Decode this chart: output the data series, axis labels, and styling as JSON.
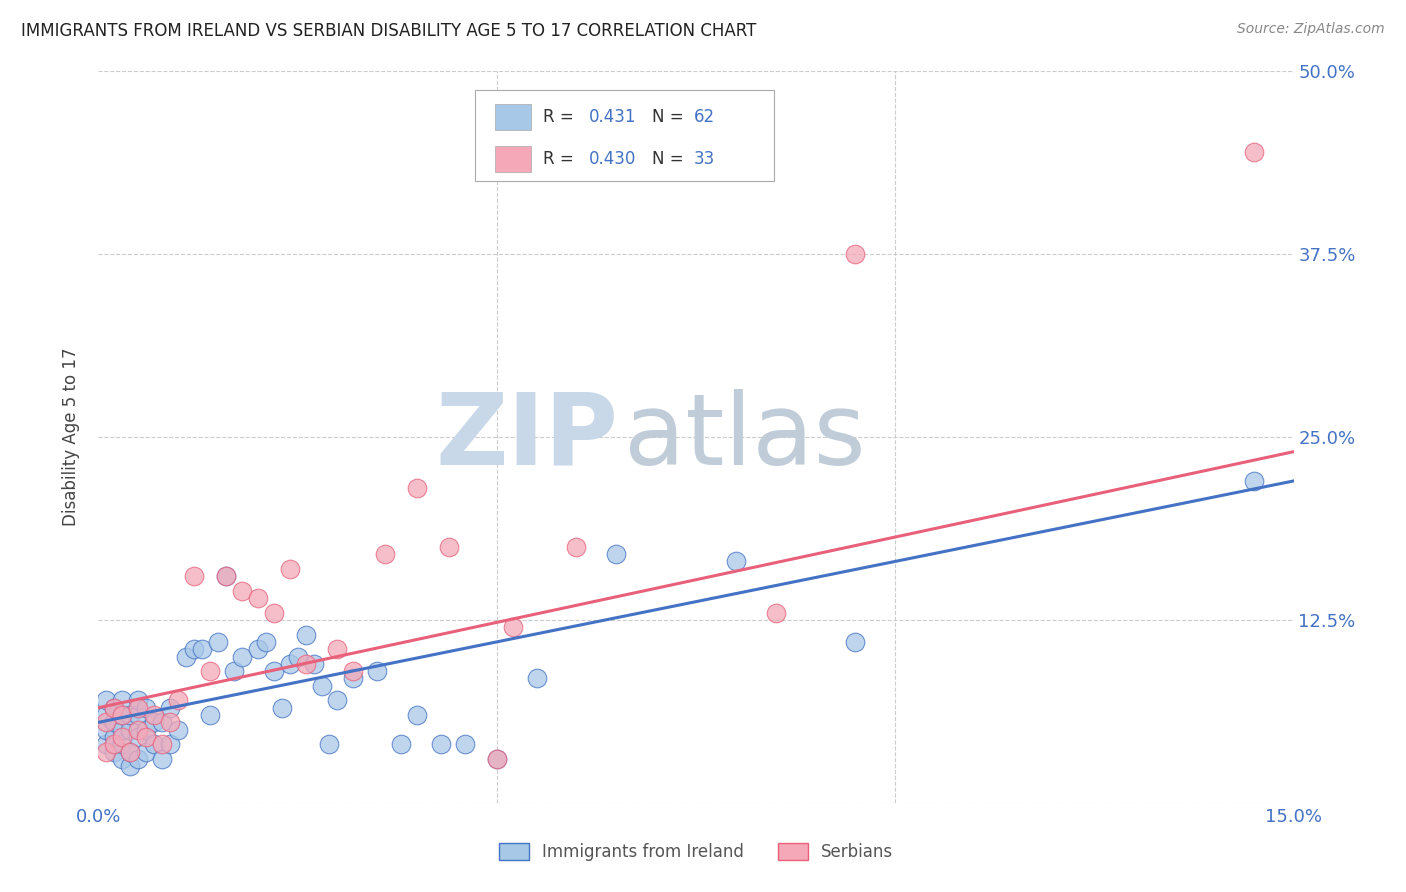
{
  "title": "IMMIGRANTS FROM IRELAND VS SERBIAN DISABILITY AGE 5 TO 17 CORRELATION CHART",
  "source": "Source: ZipAtlas.com",
  "ylabel": "Disability Age 5 to 17",
  "xlim": [
    0.0,
    0.15
  ],
  "ylim": [
    0.0,
    0.5
  ],
  "xticks": [
    0.0,
    0.05,
    0.1,
    0.15
  ],
  "xticklabels": [
    "0.0%",
    "",
    "",
    "15.0%"
  ],
  "yticks": [
    0.0,
    0.125,
    0.25,
    0.375,
    0.5
  ],
  "yticklabels": [
    "",
    "12.5%",
    "25.0%",
    "37.5%",
    "50.0%"
  ],
  "legend_r_ireland": "0.431",
  "legend_n_ireland": "62",
  "legend_r_serbian": "0.430",
  "legend_n_serbian": "33",
  "color_ireland": "#a8c8e8",
  "color_serbian": "#f4a8b8",
  "color_ireland_line": "#4472c4",
  "color_serbian_line": "#e8607a",
  "legend_label_ireland": "Immigrants from Ireland",
  "legend_label_serbian": "Serbians",
  "ireland_x": [
    0.001,
    0.001,
    0.001,
    0.001,
    0.002,
    0.002,
    0.002,
    0.002,
    0.003,
    0.003,
    0.003,
    0.003,
    0.003,
    0.004,
    0.004,
    0.004,
    0.004,
    0.005,
    0.005,
    0.005,
    0.005,
    0.006,
    0.006,
    0.006,
    0.007,
    0.007,
    0.008,
    0.008,
    0.009,
    0.009,
    0.01,
    0.011,
    0.012,
    0.013,
    0.014,
    0.015,
    0.016,
    0.017,
    0.018,
    0.02,
    0.021,
    0.022,
    0.023,
    0.024,
    0.025,
    0.026,
    0.027,
    0.028,
    0.029,
    0.03,
    0.032,
    0.035,
    0.038,
    0.04,
    0.043,
    0.046,
    0.05,
    0.055,
    0.065,
    0.08,
    0.095,
    0.145
  ],
  "ireland_y": [
    0.04,
    0.05,
    0.06,
    0.07,
    0.035,
    0.045,
    0.055,
    0.065,
    0.03,
    0.04,
    0.05,
    0.06,
    0.07,
    0.025,
    0.035,
    0.05,
    0.06,
    0.03,
    0.045,
    0.06,
    0.07,
    0.035,
    0.05,
    0.065,
    0.04,
    0.055,
    0.03,
    0.055,
    0.04,
    0.065,
    0.05,
    0.1,
    0.105,
    0.105,
    0.06,
    0.11,
    0.155,
    0.09,
    0.1,
    0.105,
    0.11,
    0.09,
    0.065,
    0.095,
    0.1,
    0.115,
    0.095,
    0.08,
    0.04,
    0.07,
    0.085,
    0.09,
    0.04,
    0.06,
    0.04,
    0.04,
    0.03,
    0.085,
    0.17,
    0.165,
    0.11,
    0.22
  ],
  "serbian_x": [
    0.001,
    0.001,
    0.002,
    0.002,
    0.003,
    0.003,
    0.004,
    0.005,
    0.005,
    0.006,
    0.007,
    0.008,
    0.009,
    0.01,
    0.012,
    0.014,
    0.016,
    0.018,
    0.02,
    0.022,
    0.024,
    0.026,
    0.03,
    0.032,
    0.036,
    0.04,
    0.044,
    0.05,
    0.052,
    0.06,
    0.085,
    0.095,
    0.145
  ],
  "serbian_y": [
    0.035,
    0.055,
    0.04,
    0.065,
    0.045,
    0.06,
    0.035,
    0.05,
    0.065,
    0.045,
    0.06,
    0.04,
    0.055,
    0.07,
    0.155,
    0.09,
    0.155,
    0.145,
    0.14,
    0.13,
    0.16,
    0.095,
    0.105,
    0.09,
    0.17,
    0.215,
    0.175,
    0.03,
    0.12,
    0.175,
    0.13,
    0.375,
    0.445
  ],
  "line_ireland_x0": 0.0,
  "line_ireland_y0": 0.055,
  "line_ireland_x1": 0.15,
  "line_ireland_y1": 0.22,
  "line_serbian_x0": 0.0,
  "line_serbian_y0": 0.065,
  "line_serbian_x1": 0.15,
  "line_serbian_y1": 0.24,
  "background_color": "#ffffff",
  "grid_color": "#cccccc",
  "title_color": "#222222",
  "axis_color": "#4472c4",
  "watermark_zip_color": "#c8d8e8",
  "watermark_atlas_color": "#c0ccd8"
}
